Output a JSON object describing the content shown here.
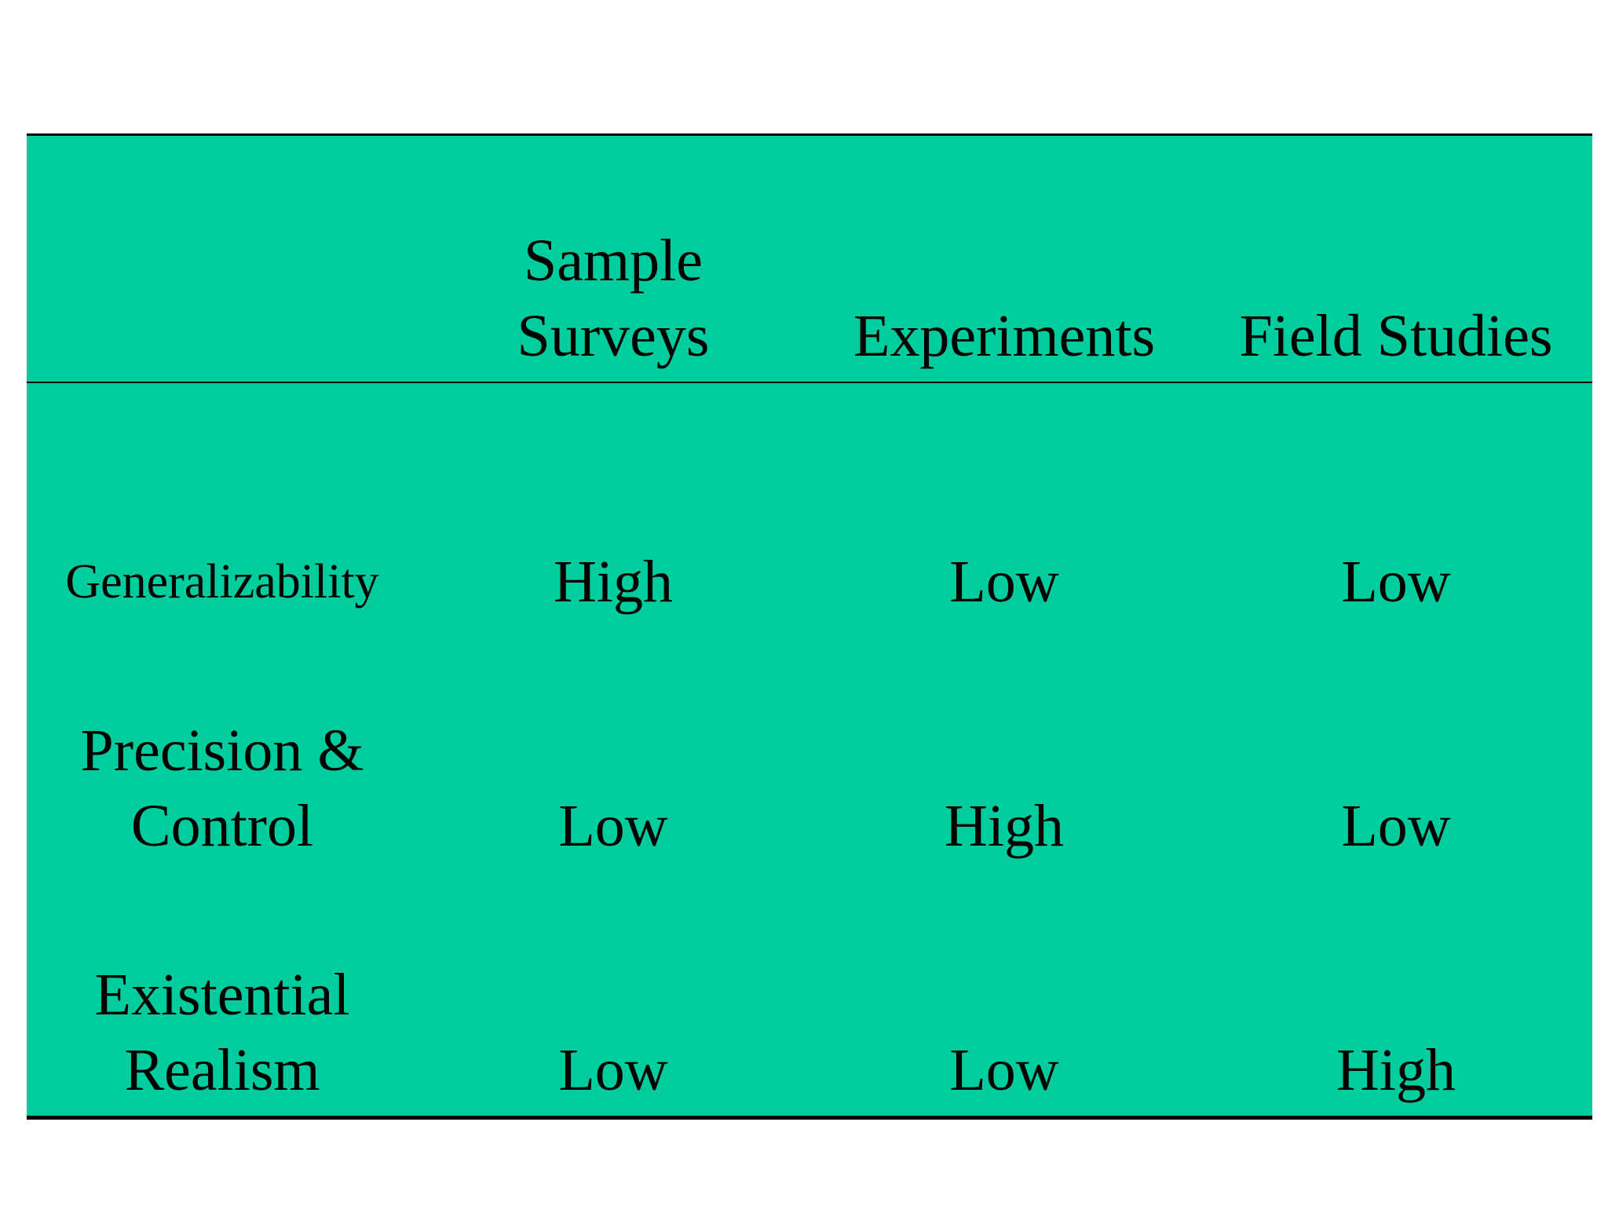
{
  "colors": {
    "cell_background": "#00CC9E",
    "rule_color": "#000000",
    "page_background": "#FFFFFF"
  },
  "table": {
    "headers": [
      {
        "lines": [
          ""
        ]
      },
      {
        "lines": [
          "Sample",
          "Surveys"
        ]
      },
      {
        "lines": [
          "Experiments"
        ]
      },
      {
        "lines": [
          "Field Studies"
        ]
      }
    ],
    "rows": [
      {
        "label": {
          "lines": [
            "Generalizability"
          ]
        },
        "cells": [
          "High",
          "Low",
          "Low"
        ]
      },
      {
        "label": {
          "lines": [
            "Precision &",
            "Control"
          ]
        },
        "cells": [
          "Low",
          "High",
          "Low"
        ]
      },
      {
        "label": {
          "lines": [
            "Existential",
            "Realism"
          ]
        },
        "cells": [
          "Low",
          "Low",
          "High"
        ]
      }
    ]
  }
}
